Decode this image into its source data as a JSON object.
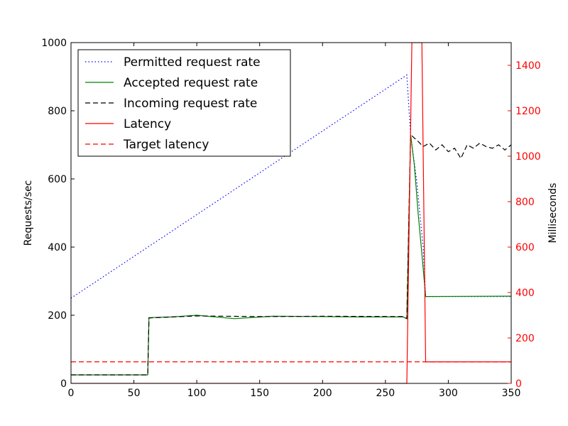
{
  "chart_data": {
    "type": "line",
    "title": "",
    "xlabel": "",
    "ylabel": "Requests/sec",
    "ylabel_right": "Milliseconds",
    "xlim": [
      0,
      350
    ],
    "ylim": [
      0,
      1000
    ],
    "ylim_right": [
      0,
      1500
    ],
    "x_ticks": [
      0,
      50,
      100,
      150,
      200,
      250,
      300,
      350
    ],
    "y_ticks": [
      0,
      200,
      400,
      600,
      800,
      1000
    ],
    "y_ticks_right": [
      0,
      200,
      400,
      600,
      800,
      1000,
      1200,
      1400
    ],
    "grid": false,
    "legend_position": "top-left",
    "colors": {
      "permitted": "#0000ff",
      "accepted": "#008000",
      "incoming": "#000000",
      "latency": "#ff0000",
      "target": "#ff0000",
      "right_axis": "#ff0000"
    },
    "series": [
      {
        "name": "Permitted request rate",
        "axis": "left",
        "style": "dotted",
        "x": [
          0,
          267,
          270,
          275,
          280,
          282,
          350
        ],
        "y": [
          250,
          905,
          730,
          590,
          400,
          255,
          255
        ]
      },
      {
        "name": "Accepted request rate",
        "axis": "left",
        "style": "solid",
        "x": [
          0,
          61,
          62,
          80,
          100,
          130,
          160,
          200,
          230,
          264,
          267,
          270,
          273,
          276,
          279,
          282,
          350
        ],
        "y": [
          25,
          25,
          193,
          195,
          200,
          190,
          197,
          196,
          195,
          195,
          190,
          730,
          640,
          500,
          380,
          255,
          256
        ]
      },
      {
        "name": "Incoming request rate",
        "axis": "left",
        "style": "dashed",
        "x": [
          0,
          61,
          62,
          100,
          150,
          200,
          264,
          267,
          270,
          276,
          280,
          285,
          290,
          295,
          300,
          305,
          310,
          315,
          320,
          325,
          330,
          335,
          340,
          345,
          350
        ],
        "y": [
          25,
          25,
          192,
          198,
          196,
          197,
          196,
          190,
          730,
          710,
          695,
          705,
          685,
          700,
          680,
          690,
          660,
          700,
          690,
          705,
          695,
          690,
          700,
          685,
          700
        ]
      },
      {
        "name": "Latency",
        "axis": "right",
        "style": "solid",
        "x": [
          0,
          267,
          271,
          279,
          282,
          350
        ],
        "y": [
          0,
          0,
          1500,
          1500,
          95,
          95
        ]
      },
      {
        "name": "Target latency",
        "axis": "right",
        "style": "dashed",
        "x": [
          0,
          350
        ],
        "y": [
          95,
          95
        ]
      }
    ]
  }
}
